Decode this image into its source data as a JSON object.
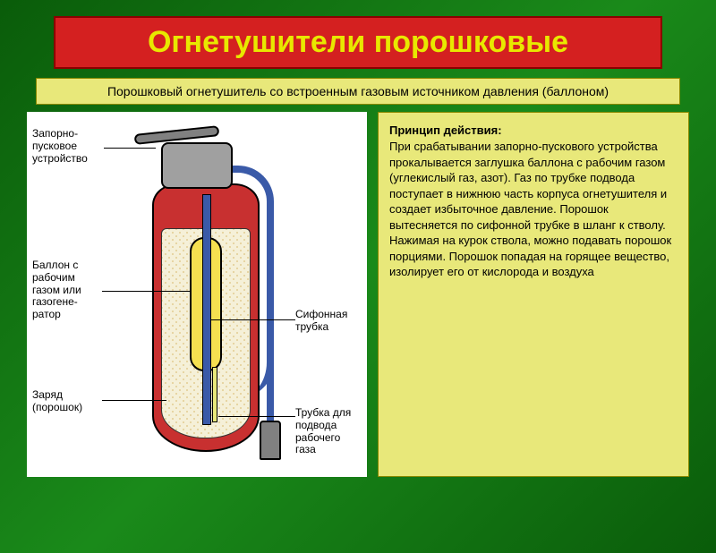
{
  "colors": {
    "background_gradient": [
      "#0a5c0a",
      "#1a8a1a",
      "#0a5c0a"
    ],
    "title_bg": "#d42020",
    "title_border": "#8a0000",
    "title_text": "#e8e800",
    "accent_bg": "#e8e87a",
    "accent_border": "#888800",
    "extinguisher_body": "#c83030",
    "cutaway_fill": "#f5f0d8",
    "cartridge_fill": "#f5e050",
    "siphon_fill": "#3a5aa8",
    "metal": "#a0a0a0"
  },
  "title": "Огнетушители порошковые",
  "subtitle": "Порошковый огнетушитель со встроенным газовым источником давления (баллоном)",
  "description": {
    "heading": "Принцип действия:",
    "body": "При срабатывании запорно-пускового устройства прокалывается заглушка баллона с рабочим газом (углекислый газ, азот). Газ по трубке подвода поступает в нижнюю часть корпуса огнетушителя и создает избыточное давление. Порошок вытесняется по сифонной трубке в шланг к стволу. Нажимая на курок ствола, можно подавать порошок порциями. Порошок попадая на горящее вещество, изолирует его от кислорода и воздуха"
  },
  "diagram": {
    "type": "cross-section",
    "labels": {
      "trigger": "Запорно-\nпусковое\nустройство",
      "cartridge": "Баллон с\nрабочим\nгазом или\nгазогене-\nратор",
      "charge": "Заряд\n(порошок)",
      "siphon": "Сифонная\nтрубка",
      "gas_tube": "Трубка для\nподвода\nрабочего\nгаза"
    }
  }
}
